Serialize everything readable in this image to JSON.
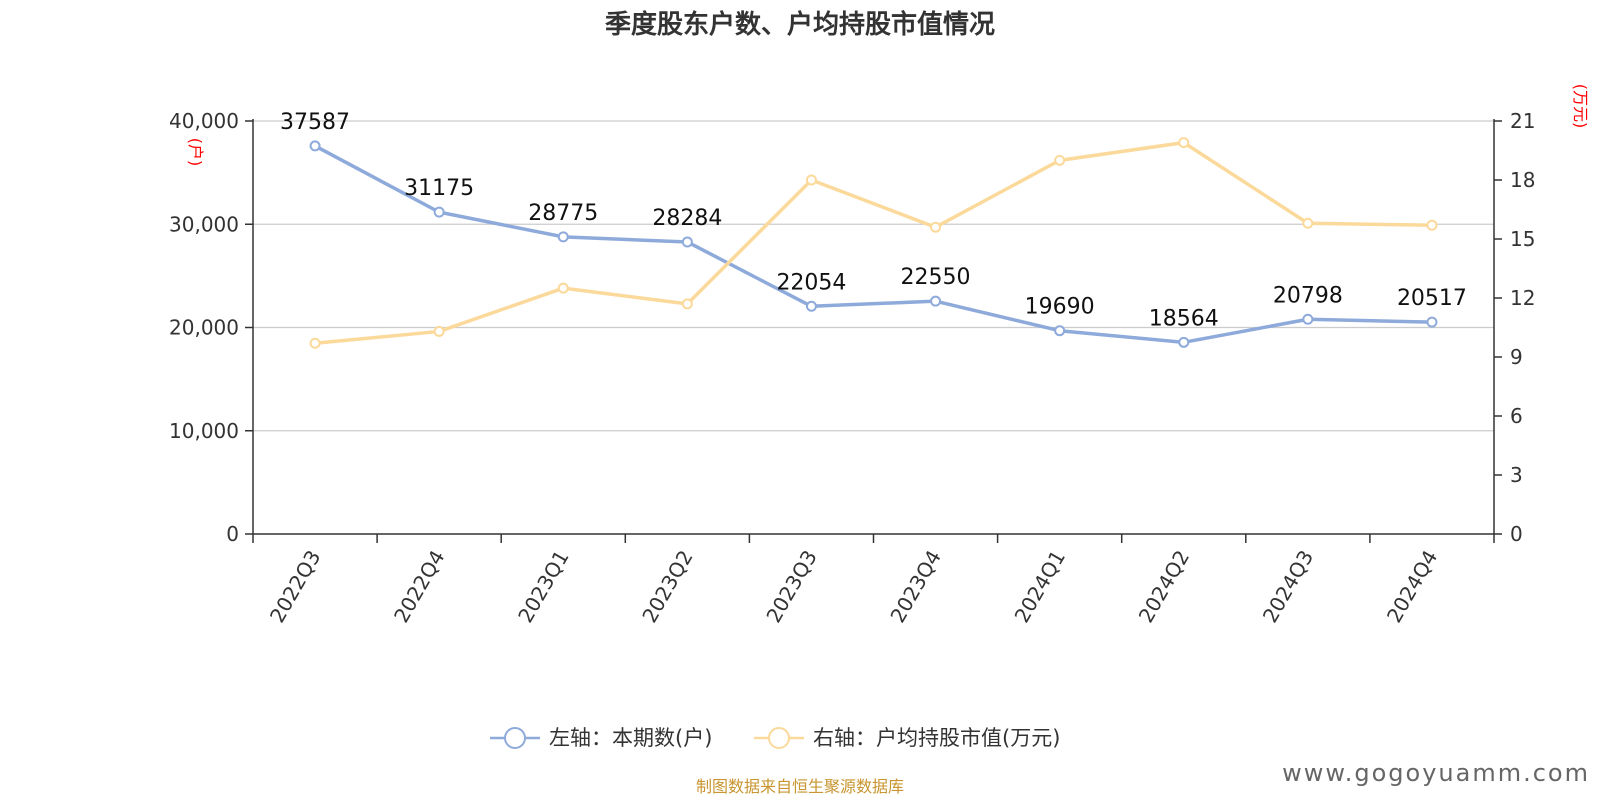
{
  "colors": {
    "left_series": "#8eaadb",
    "right_series": "#fbd99a",
    "grid": "#cccccc",
    "axis": "#333333",
    "unit": "#ff0000",
    "source": "#c8952f"
  },
  "chart_data": {
    "type": "line",
    "title": "季度股东户数、户均持股市值情况",
    "categories": [
      "2022Q3",
      "2022Q4",
      "2023Q1",
      "2023Q2",
      "2023Q3",
      "2023Q4",
      "2024Q1",
      "2024Q2",
      "2024Q3",
      "2024Q4"
    ],
    "left_axis": {
      "unit": "(户)",
      "ylim": [
        0,
        40000
      ],
      "ticks": [
        0,
        10000,
        20000,
        30000,
        40000
      ],
      "tick_labels": [
        "0",
        "10,000",
        "20,000",
        "30,000",
        "40,000"
      ]
    },
    "right_axis": {
      "unit": "(万元)",
      "ylim": [
        0,
        21
      ],
      "ticks": [
        0,
        3,
        6,
        9,
        12,
        15,
        18,
        21
      ],
      "tick_labels": [
        "0",
        "3",
        "6",
        "9",
        "12",
        "15",
        "18",
        "21"
      ]
    },
    "series": [
      {
        "name": "左轴：本期数(户)",
        "axis": "left",
        "values": [
          37587,
          31175,
          28775,
          28284,
          22054,
          22550,
          19690,
          18564,
          20798,
          20517
        ],
        "labels": [
          "37587",
          "31175",
          "28775",
          "28284",
          "22054",
          "22550",
          "19690",
          "18564",
          "20798",
          "20517"
        ]
      },
      {
        "name": "右轴：户均持股市值(万元)",
        "axis": "right",
        "values": [
          9.7,
          10.3,
          12.5,
          11.7,
          18.0,
          15.6,
          19.0,
          19.9,
          15.8,
          15.7
        ]
      }
    ],
    "grid": true,
    "legend_position": "bottom-center"
  },
  "source_text": "制图数据来自恒生聚源数据库",
  "watermark_text": "www.gogoyuamm.com"
}
